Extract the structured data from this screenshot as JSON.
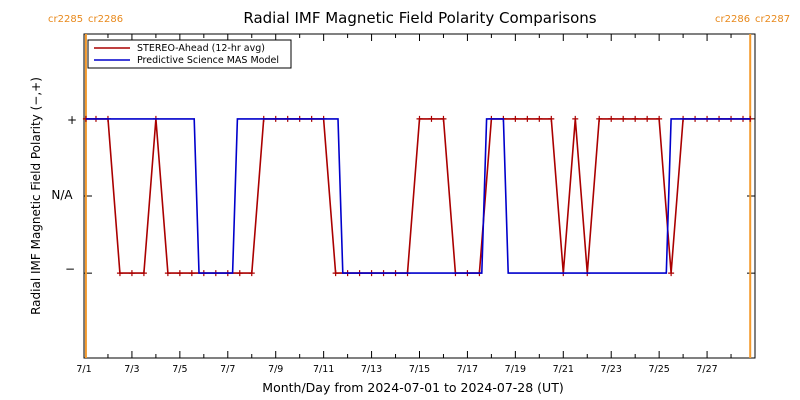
{
  "chart_data": {
    "type": "line",
    "title": "Radial IMF Magnetic Field Polarity Comparisons",
    "xlabel": "Month/Day from 2024-07-01 to 2024-07-28 (UT)",
    "ylabel": "Radial IMF Magnetic Field Polarity (−,+)",
    "x_ticks": [
      "7/1",
      "7/3",
      "7/5",
      "7/7",
      "7/9",
      "7/11",
      "7/13",
      "7/15",
      "7/17",
      "7/19",
      "7/21",
      "7/23",
      "7/25",
      "7/27"
    ],
    "y_ticks": [
      "+",
      "N/A",
      "−"
    ],
    "xlim": [
      0,
      28
    ],
    "ylim": [
      -2.1,
      2.1
    ],
    "carrington_labels": {
      "left_a": "cr2285",
      "left_b": "cr2286",
      "right_a": "cr2286",
      "right_b": "cr2287"
    },
    "carrington_markers_day": [
      0.08,
      27.8
    ],
    "legend_position": "top-left",
    "series": [
      {
        "name": "STEREO-Ahead (12-hr avg)",
        "color": "#aa0000",
        "markers": true,
        "points": [
          [
            0.08,
            1
          ],
          [
            0.5,
            1
          ],
          [
            1,
            1
          ],
          [
            1.5,
            -1
          ],
          [
            2,
            -1
          ],
          [
            2.5,
            -1
          ],
          [
            3,
            1
          ],
          [
            3.5,
            -1
          ],
          [
            4,
            -1
          ],
          [
            4.5,
            -1
          ],
          [
            5,
            -1
          ],
          [
            5.5,
            -1
          ],
          [
            6,
            -1
          ],
          [
            6.5,
            -1
          ],
          [
            7,
            -1
          ],
          [
            7.5,
            1
          ],
          [
            8,
            1
          ],
          [
            8.5,
            1
          ],
          [
            9,
            1
          ],
          [
            9.5,
            1
          ],
          [
            10,
            1
          ],
          [
            10.5,
            -1
          ],
          [
            11,
            -1
          ],
          [
            11.5,
            -1
          ],
          [
            12,
            -1
          ],
          [
            12.5,
            -1
          ],
          [
            13,
            -1
          ],
          [
            13.5,
            -1
          ],
          [
            14,
            1
          ],
          [
            14.5,
            1
          ],
          [
            15,
            1
          ],
          [
            15.5,
            -1
          ],
          [
            16,
            -1
          ],
          [
            16.5,
            -1
          ],
          [
            17,
            1
          ],
          [
            17.5,
            1
          ],
          [
            18,
            1
          ],
          [
            18.5,
            1
          ],
          [
            19,
            1
          ],
          [
            19.5,
            1
          ],
          [
            20,
            -1
          ],
          [
            20.5,
            1
          ],
          [
            21,
            -1
          ],
          [
            21.5,
            1
          ],
          [
            22,
            1
          ],
          [
            22.5,
            1
          ],
          [
            23,
            1
          ],
          [
            23.5,
            1
          ],
          [
            24,
            1
          ],
          [
            24.5,
            -1
          ],
          [
            25,
            1
          ],
          [
            25.5,
            1
          ],
          [
            26,
            1
          ],
          [
            26.5,
            1
          ],
          [
            27,
            1
          ],
          [
            27.5,
            1
          ],
          [
            27.8,
            1
          ]
        ]
      },
      {
        "name": "Predictive Science MAS Model",
        "color": "#0000cc",
        "markers": false,
        "points": [
          [
            0.08,
            1
          ],
          [
            4.6,
            1
          ],
          [
            4.8,
            -1
          ],
          [
            6.2,
            -1
          ],
          [
            6.4,
            1
          ],
          [
            10.6,
            1
          ],
          [
            10.8,
            -1
          ],
          [
            16.6,
            -1
          ],
          [
            16.8,
            1
          ],
          [
            17.5,
            1
          ],
          [
            17.7,
            -1
          ],
          [
            24.3,
            -1
          ],
          [
            24.5,
            1
          ],
          [
            27.8,
            1
          ]
        ]
      }
    ]
  }
}
